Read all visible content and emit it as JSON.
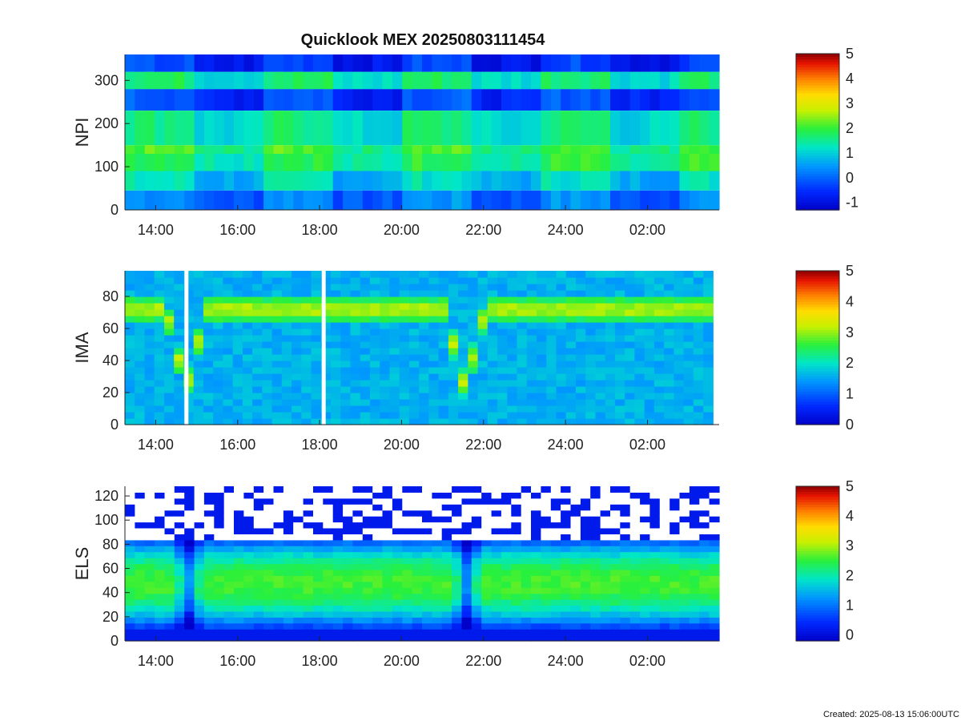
{
  "title": "Quicklook MEX 20250803111454",
  "created": "Created: 2025-08-13 15:06:00UTC",
  "chart_data": [
    {
      "type": "heatmap",
      "ylabel": "NPI",
      "ylim": [
        0,
        360
      ],
      "yticks": [
        0,
        100,
        200,
        300
      ],
      "xlim_hours": [
        13.25,
        27.75
      ],
      "xtick_labels": [
        "14:00",
        "16:00",
        "18:00",
        "20:00",
        "22:00",
        "24:00",
        "02:00"
      ],
      "xtick_hours": [
        14,
        16,
        18,
        20,
        22,
        24,
        26
      ],
      "data_end_hour": 27.9,
      "colorbar": {
        "range": [
          -1.3,
          5
        ],
        "ticks": [
          -1,
          0,
          1,
          2,
          3,
          4,
          5
        ]
      },
      "bands": [
        {
          "y": [
            0,
            45
          ],
          "level": 0.1
        },
        {
          "y": [
            45,
            90
          ],
          "level": 0.9
        },
        {
          "y": [
            90,
            130
          ],
          "level": 1.6
        },
        {
          "y": [
            130,
            150
          ],
          "level": 1.8
        },
        {
          "y": [
            150,
            230
          ],
          "level": 1.3
        },
        {
          "y": [
            230,
            280
          ],
          "level": -0.4
        },
        {
          "y": [
            280,
            320
          ],
          "level": 1.4
        },
        {
          "y": [
            320,
            360
          ],
          "level": -0.6
        }
      ]
    },
    {
      "type": "heatmap",
      "ylabel": "IMA",
      "ylim": [
        0,
        96
      ],
      "yticks": [
        0,
        20,
        40,
        60,
        80
      ],
      "xlim_hours": [
        13.25,
        27.75
      ],
      "xtick_labels": [
        "14:00",
        "16:00",
        "18:00",
        "20:00",
        "22:00",
        "24:00",
        "02:00"
      ],
      "xtick_hours": [
        14,
        16,
        18,
        20,
        22,
        24,
        26
      ],
      "data_end_hour": 27.6,
      "data_gaps_hours": [
        14.75,
        18.1
      ],
      "colorbar": {
        "range": [
          0,
          5
        ],
        "ticks": [
          0,
          1,
          2,
          3,
          4,
          5
        ]
      },
      "background_level": 1.6,
      "ridge": {
        "center_y": 72,
        "width": 9,
        "peak_level": 3.3
      },
      "dips_hours": [
        14.75,
        21.55
      ]
    },
    {
      "type": "heatmap",
      "ylabel": "ELS",
      "ylim": [
        0,
        128
      ],
      "yticks": [
        0,
        20,
        40,
        60,
        80,
        100,
        120
      ],
      "xlim_hours": [
        13.25,
        27.75
      ],
      "xtick_labels": [
        "14:00",
        "16:00",
        "18:00",
        "20:00",
        "22:00",
        "24:00",
        "02:00"
      ],
      "xtick_hours": [
        14,
        16,
        18,
        20,
        22,
        24,
        26
      ],
      "data_end_hour": 27.9,
      "colorbar": {
        "range": [
          -0.2,
          5
        ],
        "ticks": [
          0,
          1,
          2,
          3,
          4,
          5
        ]
      },
      "core": {
        "center_y": 48,
        "peak_level": 2.6
      },
      "noise_above_y": 85,
      "dips_hours": [
        14.8,
        21.6
      ]
    }
  ]
}
